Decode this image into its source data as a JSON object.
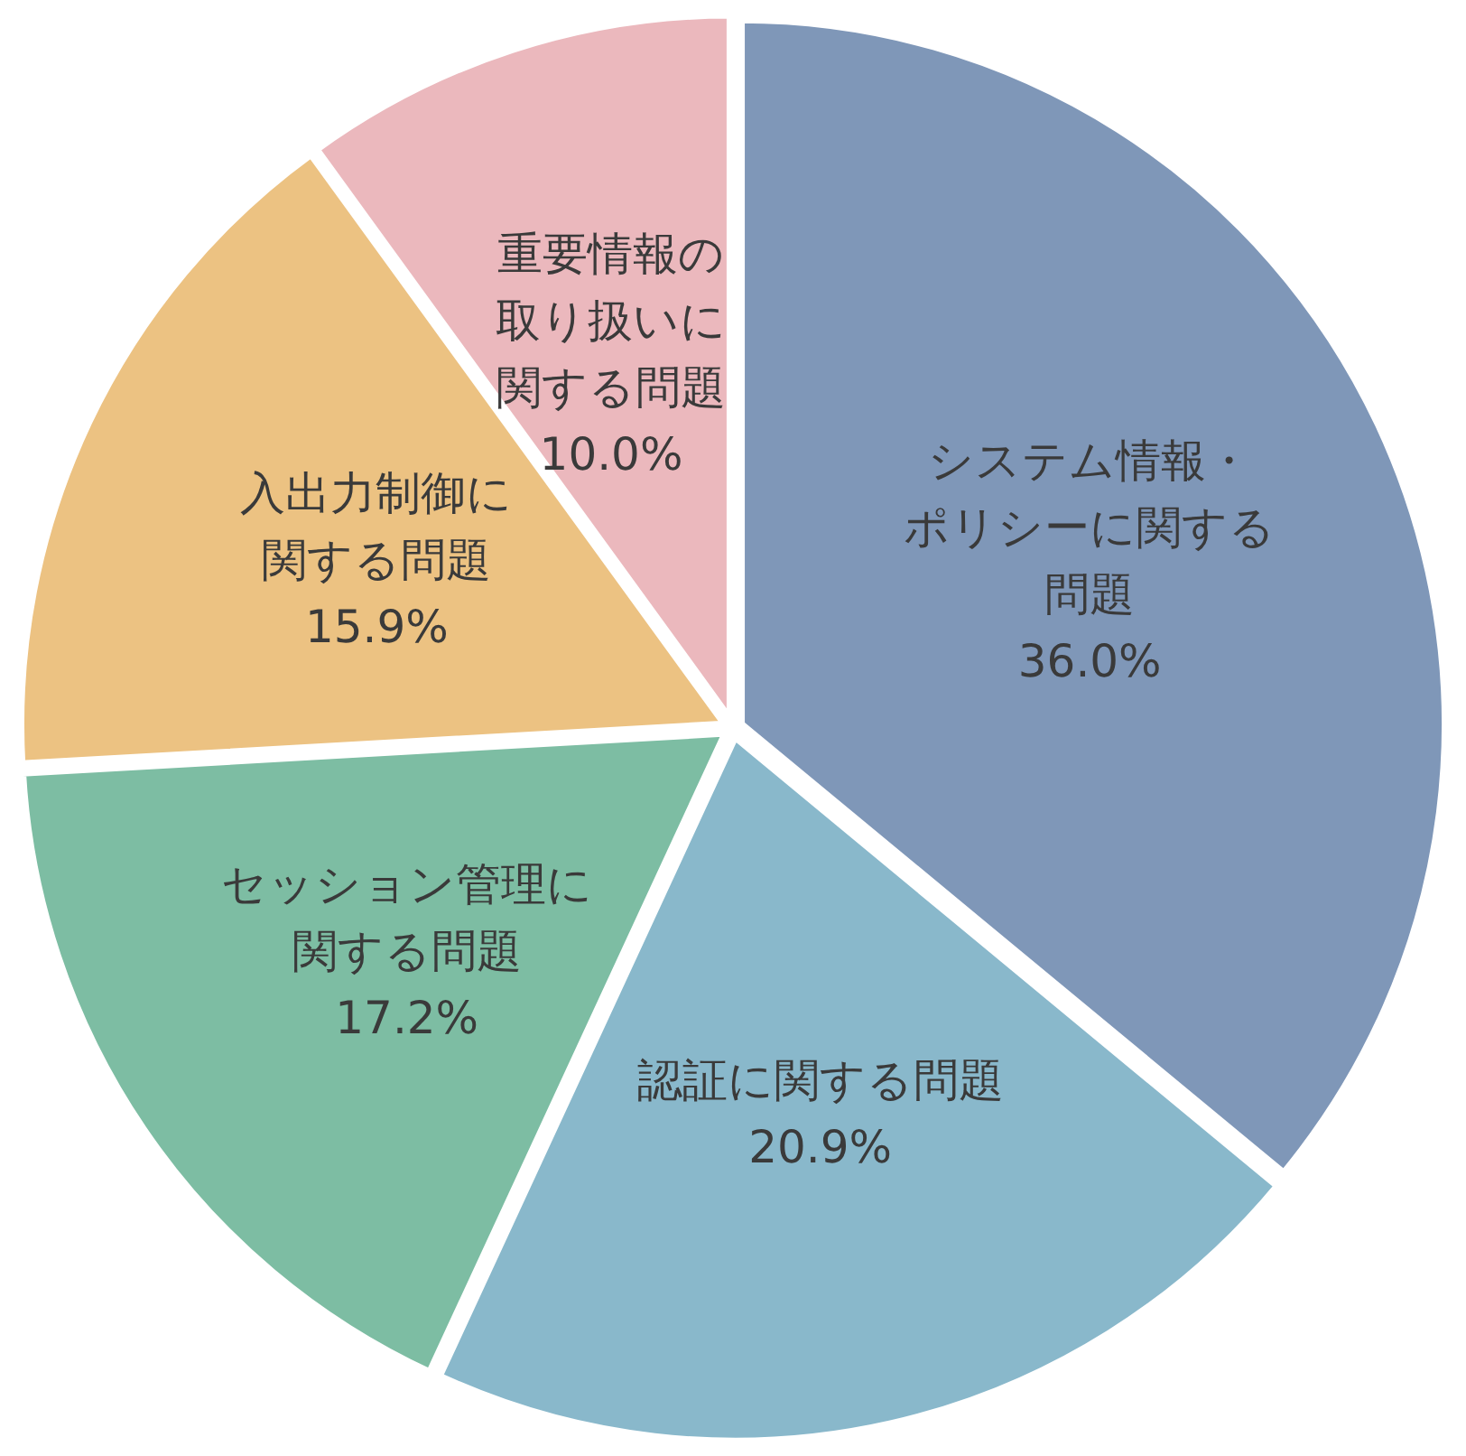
{
  "chart_data": {
    "type": "pie",
    "categories": [
      "システム情報・ポリシーに関する問題",
      "認証に関する問題",
      "セッション管理に関する問題",
      "入出力制御に関する問題",
      "重要情報の取り扱いに関する問題"
    ],
    "values": [
      36.0,
      20.9,
      17.2,
      15.9,
      10.0
    ],
    "value_labels": [
      "36.0%",
      "20.9%",
      "17.2%",
      "15.9%",
      "10.0%"
    ],
    "colors": [
      "#7f97b8",
      "#89b8cb",
      "#7dbda3",
      "#ecc282",
      "#ebb8bd"
    ]
  }
}
